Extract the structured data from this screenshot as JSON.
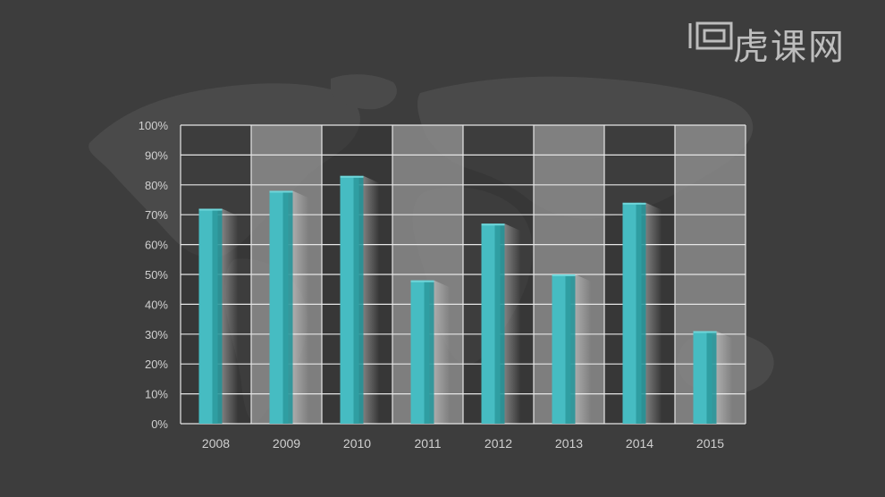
{
  "watermark": {
    "text": "虎课网"
  },
  "chart_data": {
    "type": "bar",
    "categories": [
      "2008",
      "2009",
      "2010",
      "2011",
      "2012",
      "2013",
      "2014",
      "2015"
    ],
    "series": [
      {
        "values": [
          72,
          78,
          83,
          48,
          67,
          50,
          74,
          31
        ]
      }
    ],
    "ylim": [
      0,
      100
    ],
    "yticks": [
      "0%",
      "10%",
      "20%",
      "30%",
      "40%",
      "50%",
      "60%",
      "70%",
      "80%",
      "90%",
      "100%"
    ],
    "title": "",
    "xlabel": "",
    "ylabel": "",
    "grid": true,
    "legend": "none",
    "colors": {
      "bar_front": "#46bcc2",
      "bar_side": "#2c9a9f",
      "grid": "#e6e6e6",
      "label": "#d0d0d0",
      "column_light": "#8a8a8a",
      "column_dark": "#333333"
    }
  }
}
